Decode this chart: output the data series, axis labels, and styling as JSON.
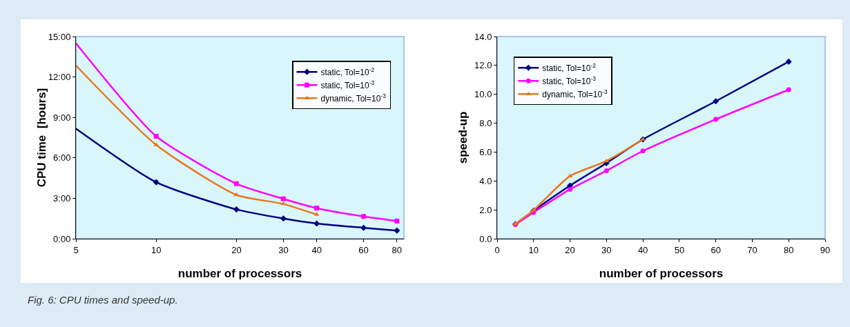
{
  "chart_data": [
    {
      "type": "line",
      "xlabel": "number of processors",
      "ylabel": "CPU time  [hours]",
      "log": "x",
      "x": [
        5,
        10,
        20,
        30,
        40,
        60,
        80
      ],
      "series": [
        {
          "name": "static, Tol=10$^{-2}$",
          "color": "#000080",
          "marker": "diamond",
          "values": [
            8.17,
            4.19,
            2.17,
            1.5,
            1.13,
            0.81,
            0.6
          ]
        },
        {
          "name": "static, Tol=10$^{-3}$",
          "color": "#ff00ff",
          "marker": "square",
          "values": [
            14.5,
            7.6,
            4.08,
            2.96,
            2.27,
            1.65,
            1.31
          ]
        },
        {
          "name": "dynamic, Tol=10$^{-3}$",
          "color": "#e8781e",
          "marker": "triangle",
          "values": [
            12.85,
            6.96,
            3.25,
            2.58,
            1.79,
            null,
            null
          ]
        }
      ],
      "xlim": [
        5,
        85
      ],
      "xticks": [
        5,
        10,
        20,
        30,
        40,
        60,
        80
      ],
      "ylim": [
        0,
        15
      ],
      "yticks": [
        {
          "value": 0,
          "label": "0:00"
        },
        {
          "value": 3,
          "label": "3:00"
        },
        {
          "value": 6,
          "label": "6:00"
        },
        {
          "value": 9,
          "label": "9:00"
        },
        {
          "value": 12,
          "label": "12:00"
        },
        {
          "value": 15,
          "label": "15:00"
        }
      ],
      "grid": false,
      "legend": "top right",
      "annotations": [
        "Fig. 6:  CPU times and speed-up."
      ]
    },
    {
      "type": "line",
      "xlabel": "number of processors",
      "ylabel": "speed-up",
      "x": [
        5,
        10,
        20,
        30,
        40,
        60,
        80
      ],
      "series": [
        {
          "name": "static, Tol=10$^{-2}$",
          "color": "#000080",
          "marker": "diamond",
          "values": [
            1.0,
            1.94,
            3.68,
            5.24,
            6.88,
            9.52,
            12.26
          ]
        },
        {
          "name": "static, Tol=10$^{-3}$",
          "color": "#ff00ff",
          "marker": "circle",
          "values": [
            0.98,
            1.82,
            3.42,
            4.71,
            6.08,
            8.27,
            10.32
          ]
        },
        {
          "name": "dynamic, Tol=10$^{-3}$",
          "color": "#e8781e",
          "marker": "triangle",
          "values": [
            1.02,
            1.98,
            4.34,
            5.38,
            6.88,
            null,
            null
          ]
        }
      ],
      "xlim": [
        0,
        90
      ],
      "xticks": [
        0,
        10,
        20,
        30,
        40,
        50,
        60,
        70,
        80,
        90
      ],
      "ylim": [
        0,
        14
      ],
      "yticks": [
        {
          "value": 0,
          "label": "0.0"
        },
        {
          "value": 2,
          "label": "2.0"
        },
        {
          "value": 4,
          "label": "4.0"
        },
        {
          "value": 6,
          "label": "6.0"
        },
        {
          "value": 8,
          "label": "8.0"
        },
        {
          "value": 10,
          "label": "10.0"
        },
        {
          "value": 12,
          "label": "12.0"
        },
        {
          "value": 14,
          "label": "14.0"
        }
      ],
      "grid": false,
      "legend": "top left"
    }
  ]
}
